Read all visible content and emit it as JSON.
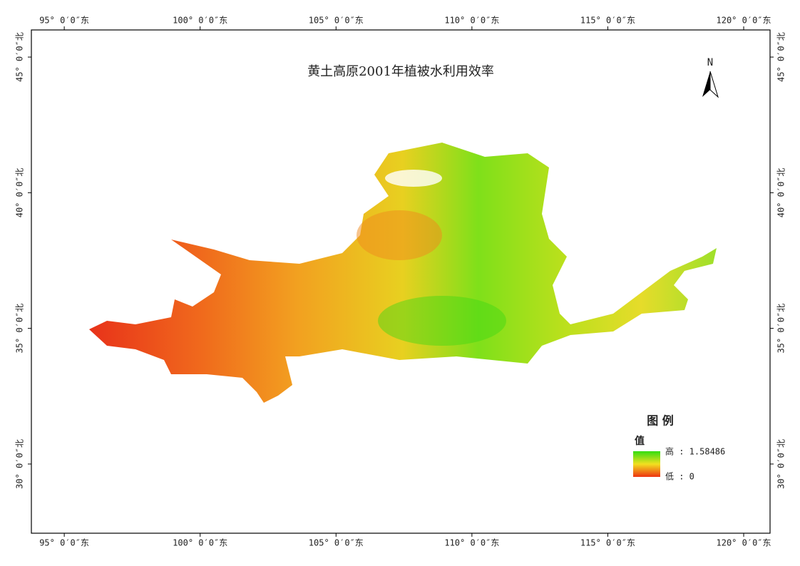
{
  "title": "黄土高原2001年植被水利用效率",
  "north_arrow": "N",
  "xlim": [
    93.79,
    120.97
  ],
  "ylim": [
    27.45,
    46.0
  ],
  "xticks": [
    {
      "value": 95,
      "label": "95° 0′0″东"
    },
    {
      "value": 100,
      "label": "100° 0′0″东"
    },
    {
      "value": 105,
      "label": "105° 0′0″东"
    },
    {
      "value": 110,
      "label": "110° 0′0″东"
    },
    {
      "value": 115,
      "label": "115° 0′0″东"
    },
    {
      "value": 120,
      "label": "120° 0′0″东"
    }
  ],
  "yticks": [
    {
      "value": 30,
      "label": "30° 0′0″北"
    },
    {
      "value": 35,
      "label": "35° 0′0″北"
    },
    {
      "value": 40,
      "label": "40° 0′0″北"
    },
    {
      "value": 45,
      "label": "45° 0′0″北"
    }
  ],
  "legend": {
    "title": "图 例",
    "field": "值",
    "high": {
      "value": 1.58486,
      "label": "高 : 1.58486",
      "color": "#33dd11"
    },
    "low": {
      "value": 0,
      "label": "低 : 0",
      "color": "#ee3311"
    }
  }
}
